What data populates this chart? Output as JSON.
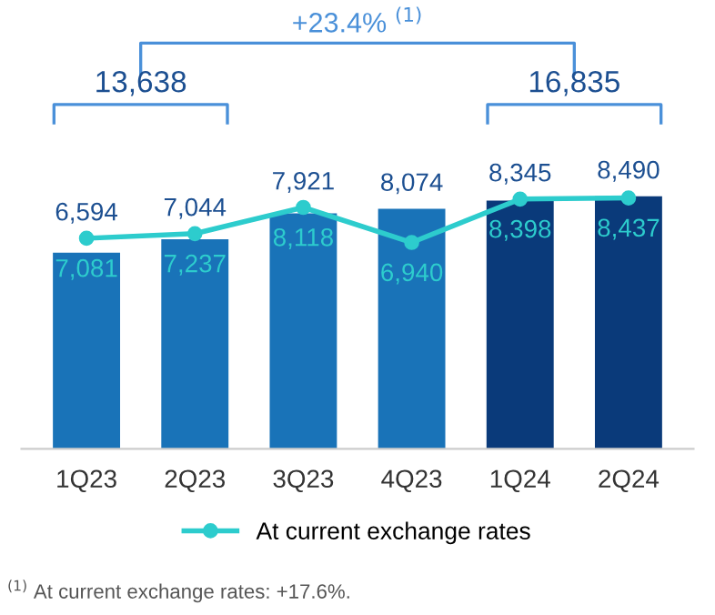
{
  "chart_data": {
    "type": "bar",
    "categories": [
      "1Q23",
      "2Q23",
      "3Q23",
      "4Q23",
      "1Q24",
      "2Q24"
    ],
    "series": [
      {
        "colors": [
          "#1973b8",
          "#1973b8",
          "#1973b8",
          "#1973b8",
          "#0a3a7a",
          "#0a3a7a"
        ],
        "values": [
          6594,
          7044,
          7921,
          8074,
          8345,
          8490
        ],
        "value_labels": [
          "6,594",
          "7,044",
          "7,921",
          "8,074",
          "8,345",
          "8,490"
        ]
      },
      {
        "type": "line",
        "name": "At current exchange rates",
        "color": "#2dcccd",
        "values": [
          7081,
          7237,
          8118,
          6940,
          8398,
          8437
        ],
        "value_labels": [
          "7,081",
          "7,237",
          "8,118",
          "6,940",
          "8,398",
          "8,437"
        ]
      }
    ],
    "marker": "circle",
    "legend": "bottom",
    "annotations": [
      "13,638",
      "16,835",
      "+23.4% $^{(1)}$",
      "$^{(1)}$ At current exchange rates: +17.6%."
    ]
  }
}
